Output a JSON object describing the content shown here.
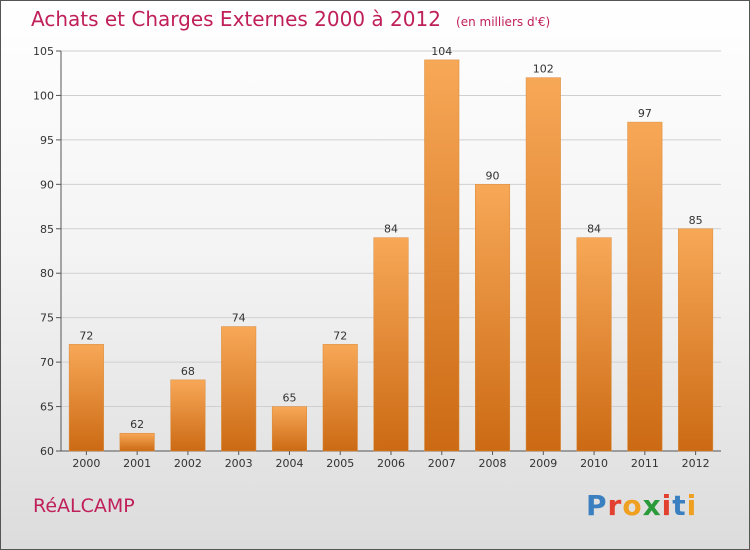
{
  "header": {
    "title": "Achats et Charges Externes 2000 à 2012",
    "unit": "(en milliers d'€)"
  },
  "footer": {
    "commune": "RéALCAMP",
    "logo": {
      "text": "Proxiti",
      "colors": [
        "#3a7fc0",
        "#e3412f",
        "#f0a020",
        "#2a9a3a",
        "#e3412f",
        "#3a7fc0",
        "#f0a020"
      ]
    }
  },
  "colors": {
    "title": "#c0205a",
    "bar_top": "#f7a857",
    "bar_bottom": "#cc6a14",
    "grid": "#d0d0d0"
  },
  "chart_data": {
    "type": "bar",
    "title": "Achats et Charges Externes 2000 à 2012",
    "subtitle": "(en milliers d'€)",
    "xlabel": "",
    "ylabel": "",
    "categories": [
      "2000",
      "2001",
      "2002",
      "2003",
      "2004",
      "2005",
      "2006",
      "2007",
      "2008",
      "2009",
      "2010",
      "2011",
      "2012"
    ],
    "values": [
      72,
      62,
      68,
      74,
      65,
      72,
      84,
      104,
      90,
      102,
      84,
      97,
      85
    ],
    "ylim": [
      60,
      105
    ],
    "yticks": [
      60,
      65,
      70,
      75,
      80,
      85,
      90,
      95,
      100,
      105
    ],
    "grid": true,
    "data_labels": true
  }
}
